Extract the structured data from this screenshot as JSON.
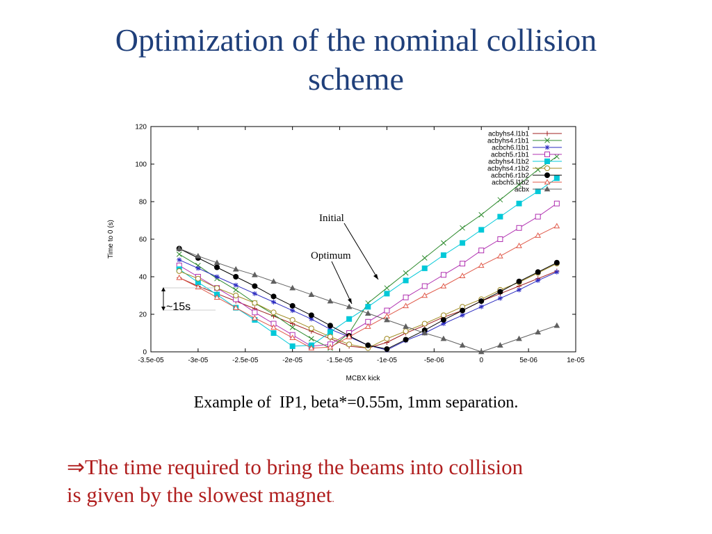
{
  "slide": {
    "title_line1": "Optimization of the nominal collision",
    "title_line2": "scheme",
    "caption": "Example of  IP1, beta*=0.55m, 1mm separation.",
    "conclusion_arrow": "⇒",
    "conclusion_line1": "The time required to bring the beams into collision",
    "conclusion_line2": "is given by the slowest magnet",
    "conclusion_end": "."
  },
  "colors": {
    "title": "#1f3f7a",
    "conclusion": "#b01e1e"
  },
  "chart_data": {
    "type": "line",
    "title": "",
    "xlabel": "MCBX kick",
    "ylabel": "Time to 0 (s)",
    "xlim": [
      -3.5e-05,
      1e-05
    ],
    "ylim": [
      0,
      120
    ],
    "xticks": [
      -3.5e-05,
      -3e-05,
      -2.5e-05,
      -2e-05,
      -1.5e-05,
      -1e-05,
      -5e-06,
      0,
      5e-06,
      1e-05
    ],
    "xtick_labels": [
      "-3.5e-05",
      "-3e-05",
      "-2.5e-05",
      "-2e-05",
      "-1.5e-05",
      "-1e-05",
      "-5e-06",
      "0",
      "5e-06",
      "1e-05"
    ],
    "yticks": [
      0,
      20,
      40,
      60,
      80,
      100,
      120
    ],
    "ytick_labels": [
      "0",
      "20",
      "40",
      "60",
      "80",
      "100",
      "120"
    ],
    "grid": false,
    "legend_position": "top-right",
    "series": [
      {
        "name": "acbyhs4.l1b1",
        "marker": "plus",
        "color": "#a02020",
        "x": [
          -3.2e-05,
          -3e-05,
          -2.8e-05,
          -2.6e-05,
          -2.4e-05,
          -2.2e-05,
          -2e-05,
          -1.8e-05,
          -1.6e-05,
          -1.4e-05,
          -1.2e-05,
          -1e-05,
          -8e-06,
          -6e-06,
          -4e-06,
          -2e-06,
          0,
          2e-06,
          4e-06,
          6e-06,
          8e-06
        ],
        "y": [
          39.5,
          35,
          31,
          27,
          23,
          19,
          15,
          11,
          7,
          3,
          2,
          5,
          10,
          14,
          18.5,
          22,
          27,
          31,
          35,
          39,
          43
        ]
      },
      {
        "name": "acbyhs4.r1b1",
        "marker": "cross",
        "color": "#2e8b2e",
        "x": [
          -3.2e-05,
          -3e-05,
          -2.8e-05,
          -2.6e-05,
          -2.4e-05,
          -2.2e-05,
          -2e-05,
          -1.8e-05,
          -1.6e-05,
          -1.4e-05,
          -1.2e-05,
          -1e-05,
          -8e-06,
          -6e-06,
          -4e-06,
          -2e-06,
          0,
          2e-06,
          4e-06,
          6e-06,
          8e-06
        ],
        "y": [
          52,
          46,
          39,
          33,
          26,
          20,
          13,
          7,
          2,
          10,
          26,
          34,
          42,
          50,
          58,
          66,
          73,
          81,
          89,
          97,
          104
        ]
      },
      {
        "name": "acbch6.l1b1",
        "marker": "star",
        "color": "#2a2ac0",
        "x": [
          -3.2e-05,
          -3e-05,
          -2.8e-05,
          -2.6e-05,
          -2.4e-05,
          -2.2e-05,
          -2e-05,
          -1.8e-05,
          -1.6e-05,
          -1.4e-05,
          -1.2e-05,
          -1e-05,
          -8e-06,
          -6e-06,
          -4e-06,
          -2e-06,
          0,
          2e-06,
          4e-06,
          6e-06,
          8e-06
        ],
        "y": [
          49,
          44.5,
          40,
          35.5,
          31,
          26.5,
          22,
          17.5,
          12,
          8,
          3.5,
          1,
          6,
          10,
          15,
          19.5,
          24,
          28.5,
          33,
          38,
          42.5
        ]
      },
      {
        "name": "acbch5.r1b1",
        "marker": "square-open",
        "color": "#b030b0",
        "x": [
          -3.2e-05,
          -3e-05,
          -2.8e-05,
          -2.6e-05,
          -2.4e-05,
          -2.2e-05,
          -2e-05,
          -1.8e-05,
          -1.6e-05,
          -1.4e-05,
          -1.2e-05,
          -1e-05,
          -8e-06,
          -6e-06,
          -4e-06,
          -2e-06,
          0,
          2e-06,
          4e-06,
          6e-06,
          8e-06
        ],
        "y": [
          46,
          40,
          34,
          28,
          21,
          15,
          9,
          3,
          4,
          10,
          16,
          22,
          29,
          35,
          41,
          47,
          54,
          60,
          66,
          72,
          79
        ]
      },
      {
        "name": "acbyhs4.l1b2",
        "marker": "square-filled",
        "color": "#00c8d8",
        "x": [
          -3.2e-05,
          -3e-05,
          -2.8e-05,
          -2.6e-05,
          -2.4e-05,
          -2.2e-05,
          -2e-05,
          -1.8e-05,
          -1.6e-05,
          -1.4e-05,
          -1.2e-05,
          -1e-05,
          -8e-06,
          -6e-06,
          -4e-06,
          -2e-06,
          0,
          2e-06,
          4e-06,
          6e-06,
          8e-06
        ],
        "y": [
          44,
          37,
          30.5,
          23.5,
          17,
          10,
          3,
          3.5,
          10.5,
          17.5,
          24,
          31,
          38,
          44.5,
          51.5,
          58,
          65,
          72,
          79,
          85.5,
          92.5
        ]
      },
      {
        "name": "acbyhs4.r1b2",
        "marker": "circle-open",
        "color": "#a08a20",
        "x": [
          -3.2e-05,
          -3e-05,
          -2.8e-05,
          -2.6e-05,
          -2.4e-05,
          -2.2e-05,
          -2e-05,
          -1.8e-05,
          -1.6e-05,
          -1.4e-05,
          -1.2e-05,
          -1e-05,
          -8e-06,
          -6e-06,
          -4e-06,
          -2e-06,
          0,
          2e-06,
          4e-06,
          6e-06,
          8e-06
        ],
        "y": [
          43,
          39,
          34,
          30,
          26,
          21,
          17,
          12.5,
          8,
          4,
          2,
          7,
          11,
          15,
          19.5,
          24,
          28,
          33,
          37,
          42,
          47
        ]
      },
      {
        "name": "acbch6.r1b2",
        "marker": "circle-filled",
        "color": "#000000",
        "x": [
          -3.2e-05,
          -3e-05,
          -2.8e-05,
          -2.6e-05,
          -2.4e-05,
          -2.2e-05,
          -2e-05,
          -1.8e-05,
          -1.6e-05,
          -1.4e-05,
          -1.2e-05,
          -1e-05,
          -8e-06,
          -6e-06,
          -4e-06,
          -2e-06,
          0,
          2e-06,
          4e-06,
          6e-06,
          8e-06
        ],
        "y": [
          55,
          50,
          45,
          40,
          35,
          29.5,
          24.5,
          19.5,
          14,
          8.5,
          3.5,
          1.5,
          6.5,
          11.5,
          17,
          22,
          27,
          32,
          37.5,
          42.5,
          47.5
        ]
      },
      {
        "name": "acbch5.l1b2",
        "marker": "triangle-open",
        "color": "#e05a4a",
        "x": [
          -3.2e-05,
          -3e-05,
          -2.8e-05,
          -2.6e-05,
          -2.4e-05,
          -2.2e-05,
          -2e-05,
          -1.8e-05,
          -1.6e-05,
          -1.4e-05,
          -1.2e-05,
          -1e-05,
          -8e-06,
          -6e-06,
          -4e-06,
          -2e-06,
          0,
          2e-06,
          4e-06,
          6e-06,
          8e-06
        ],
        "y": [
          39.5,
          34.5,
          29,
          23.5,
          18,
          13,
          7.5,
          2,
          2.5,
          8,
          13.5,
          19,
          24.5,
          30,
          35,
          40.5,
          46,
          51,
          56.5,
          62,
          67
        ]
      },
      {
        "name": "acbx",
        "marker": "triangle-filled",
        "color": "#606060",
        "x": [
          -3.2e-05,
          -3e-05,
          -2.8e-05,
          -2.6e-05,
          -2.4e-05,
          -2.2e-05,
          -2e-05,
          -1.8e-05,
          -1.6e-05,
          -1.4e-05,
          -1.2e-05,
          -1e-05,
          -8e-06,
          -6e-06,
          -4e-06,
          -2e-06,
          0,
          2e-06,
          4e-06,
          6e-06,
          8e-06
        ],
        "y": [
          55,
          51,
          47.5,
          44,
          41,
          37.5,
          34,
          30.5,
          27,
          24,
          20.5,
          17,
          13.5,
          10,
          7,
          3.5,
          0,
          3.5,
          7,
          10.5,
          14
        ]
      }
    ],
    "annotations": [
      {
        "text": "Initial"
      },
      {
        "text": "Optimum"
      },
      {
        "text": "~15s"
      }
    ]
  }
}
